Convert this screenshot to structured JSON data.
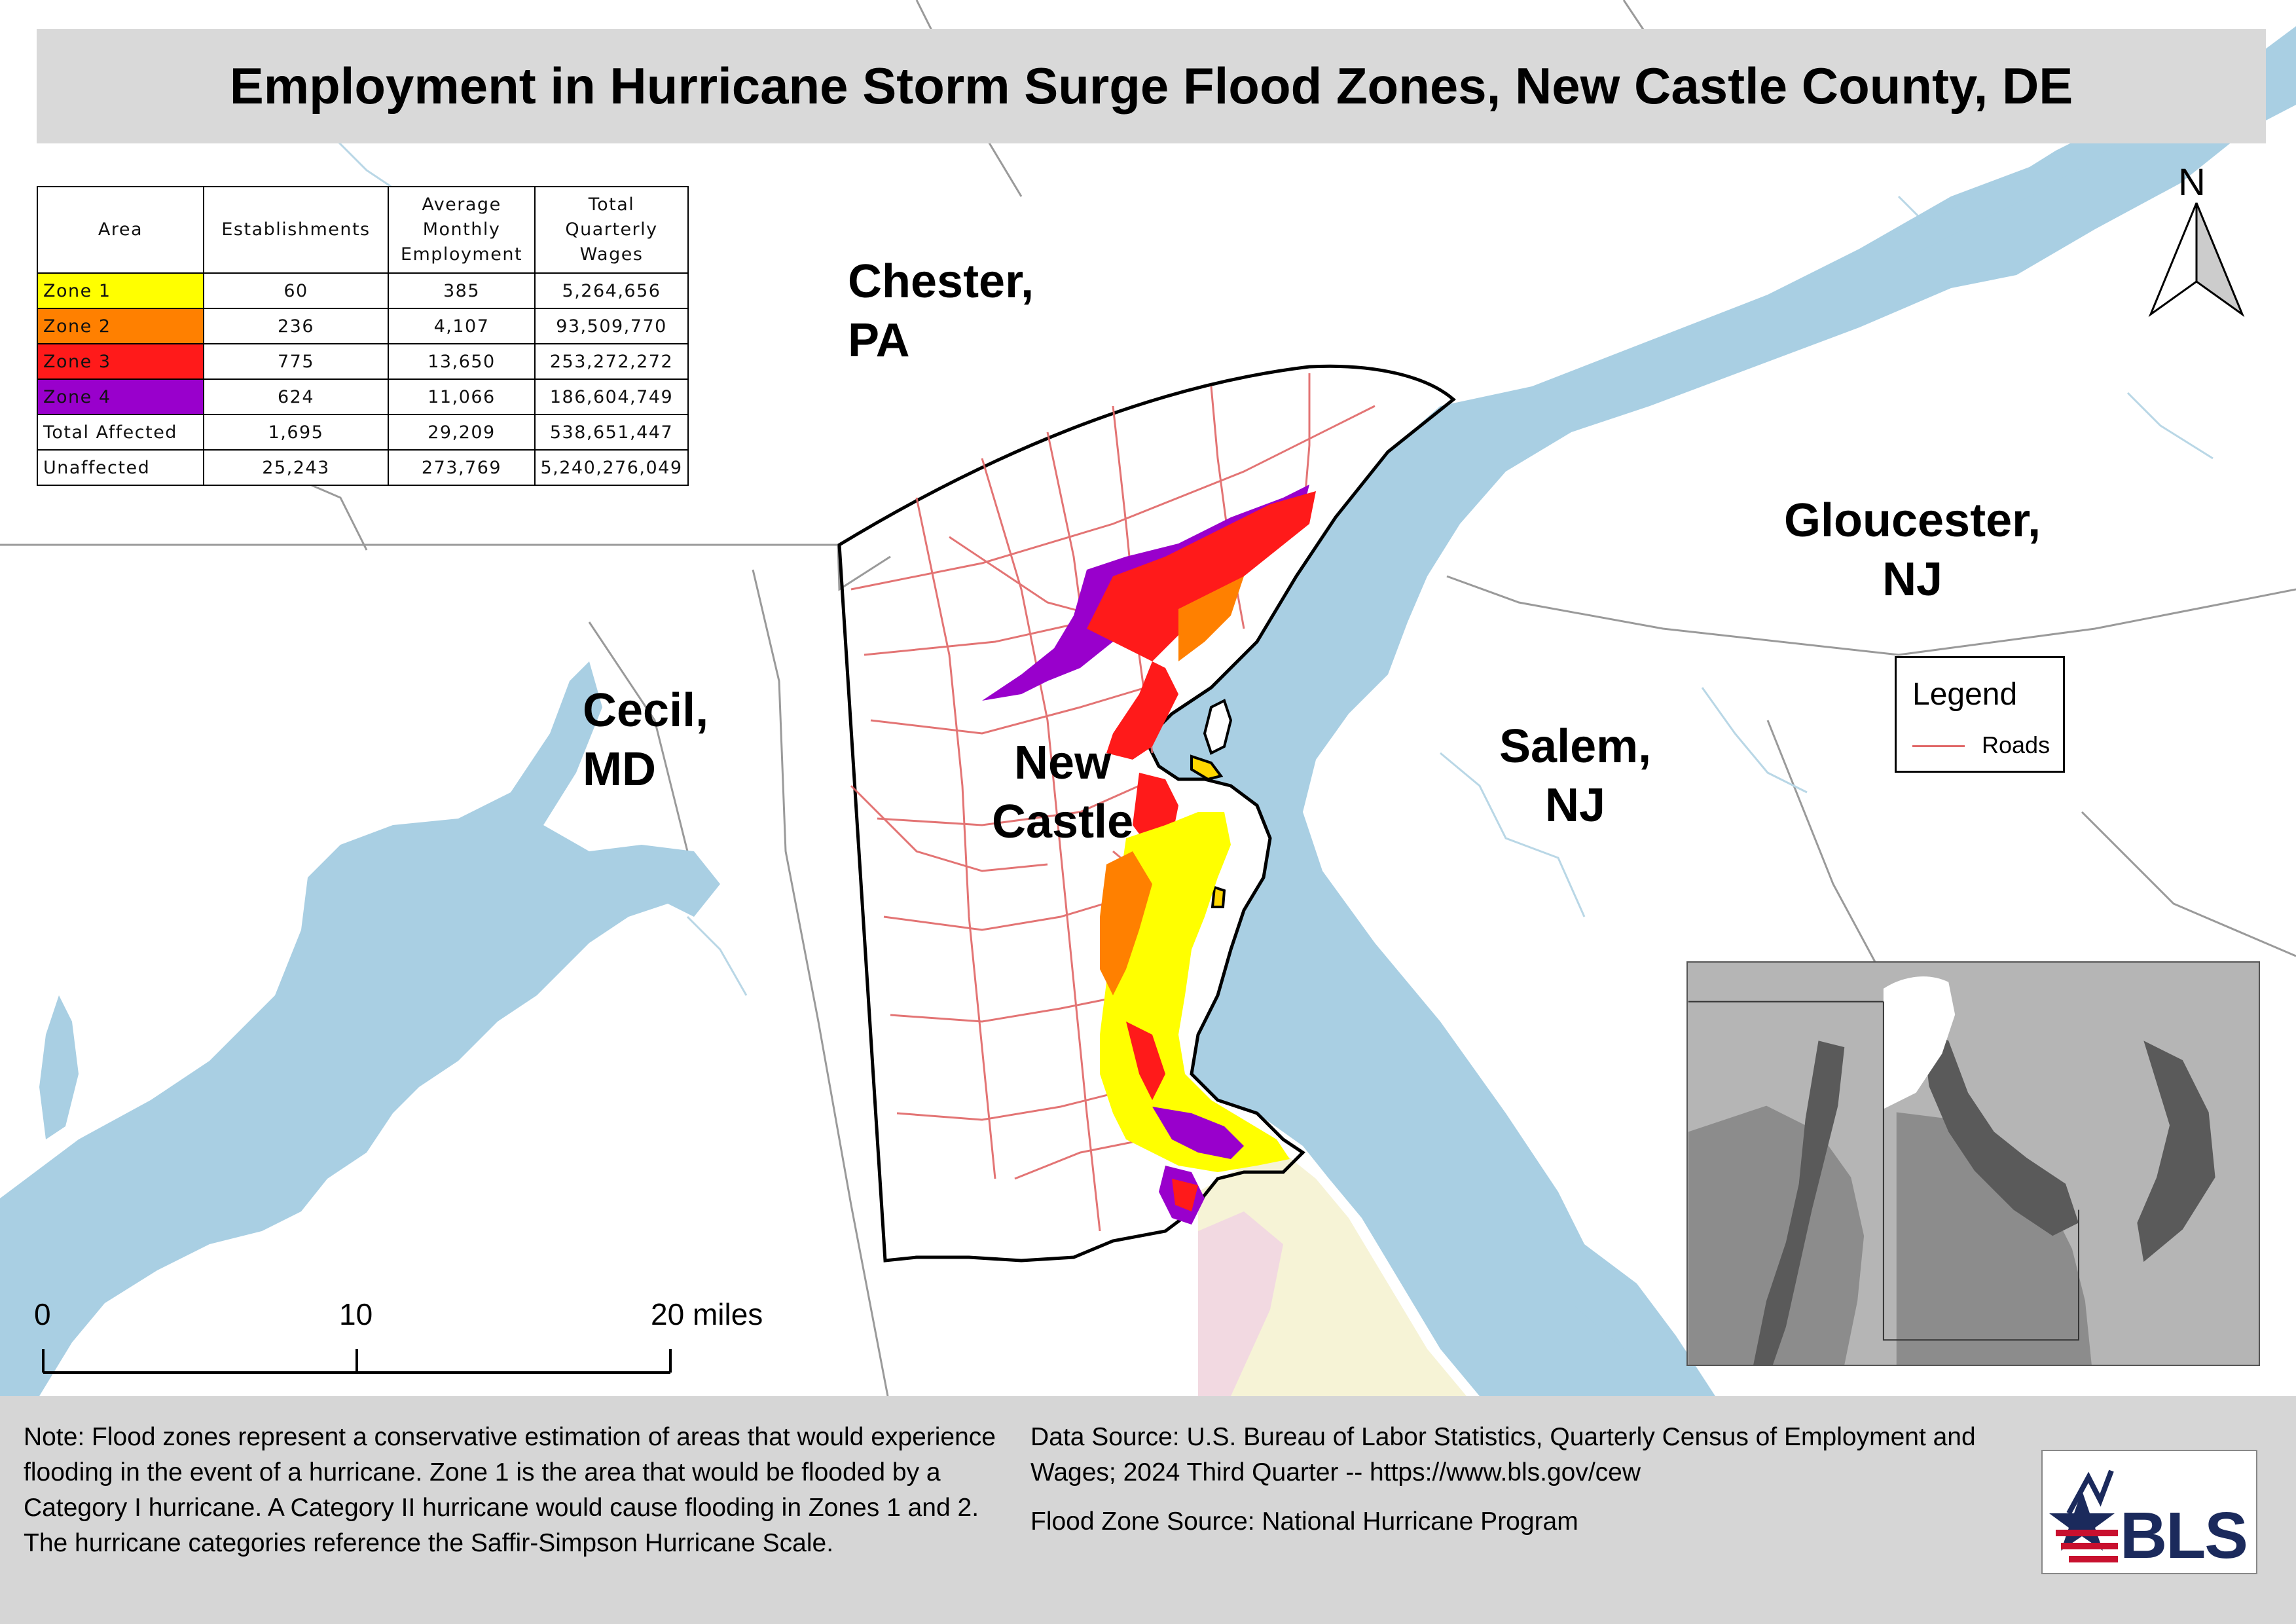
{
  "title": "Employment in Hurricane Storm Surge Flood Zones, New Castle County, DE",
  "table": {
    "headers": {
      "area": "Area",
      "establishments": "Establishments",
      "employment": [
        "Average",
        "Monthly",
        "Employment"
      ],
      "wages": [
        "Total",
        "Quarterly",
        "Wages"
      ]
    },
    "rows": [
      {
        "area": "Zone 1",
        "establishments": "60",
        "employment": "385",
        "wages": "5,264,656",
        "color": "#ffff00"
      },
      {
        "area": "Zone 2",
        "establishments": "236",
        "employment": "4,107",
        "wages": "93,509,770",
        "color": "#ff8000"
      },
      {
        "area": "Zone 3",
        "establishments": "775",
        "employment": "13,650",
        "wages": "253,272,272",
        "color": "#ff1a1a"
      },
      {
        "area": "Zone 4",
        "establishments": "624",
        "employment": "11,066",
        "wages": "186,604,749",
        "color": "#9900cc"
      },
      {
        "area": "Total Affected",
        "establishments": "1,695",
        "employment": "29,209",
        "wages": "538,651,447",
        "color": "#ffffff"
      },
      {
        "area": "Unaffected",
        "establishments": "25,243",
        "employment": "273,769",
        "wages": "5,240,276,049",
        "color": "#ffffff"
      }
    ]
  },
  "places": {
    "chester": [
      "Chester,",
      "PA"
    ],
    "gloucester": [
      "Gloucester,",
      "NJ"
    ],
    "cecil": [
      "Cecil,",
      "MD"
    ],
    "new_castle": [
      "New",
      "Castle"
    ],
    "salem": [
      "Salem,",
      "NJ"
    ]
  },
  "north_arrow": "N",
  "legend": {
    "title": "Legend",
    "items": [
      {
        "label": "Roads",
        "color": "#e06666"
      }
    ]
  },
  "scale_bar": {
    "labels": [
      "0",
      "10",
      "20 miles"
    ]
  },
  "footer": {
    "note": "Note: Flood zones represent a conservative estimation of areas that would experience flooding in the event of a hurricane. Zone 1 is the area that would be flooded by a Category I hurricane. A Category II hurricane would cause flooding in Zones 1 and 2. The hurricane categories reference the Saffir-Simpson Hurricane Scale.",
    "data_source": "Data Source: U.S. Bureau of Labor Statistics, Quarterly Census of Employment and Wages; 2024 Third Quarter -- https://www.bls.gov/cew",
    "flood_source": "Flood Zone Source: National Hurricane Program"
  },
  "logo": {
    "text": "BLS"
  },
  "colors": {
    "water": "#a9cfe3",
    "roads": "#e06666",
    "county_border": "#000000",
    "title_bg": "#d9d9d9"
  }
}
